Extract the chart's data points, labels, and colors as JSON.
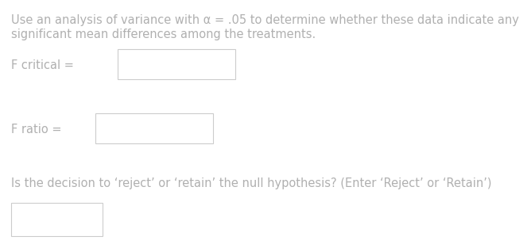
{
  "bg_color": "#ffffff",
  "text_color": "#b0b0b0",
  "line1": "Use an analysis of variance with α = .05 to determine whether these data indicate any",
  "line2": "significant mean differences among the treatments.",
  "label1": "F critical =",
  "label2": "F ratio =",
  "label3": "Is the decision to ‘reject’ or ‘retain’ the null hypothesis? (Enter ‘Reject’ or ‘Retain’)",
  "font_size": 10.5,
  "fig_width": 6.68,
  "fig_height": 3.13,
  "dpi": 100
}
